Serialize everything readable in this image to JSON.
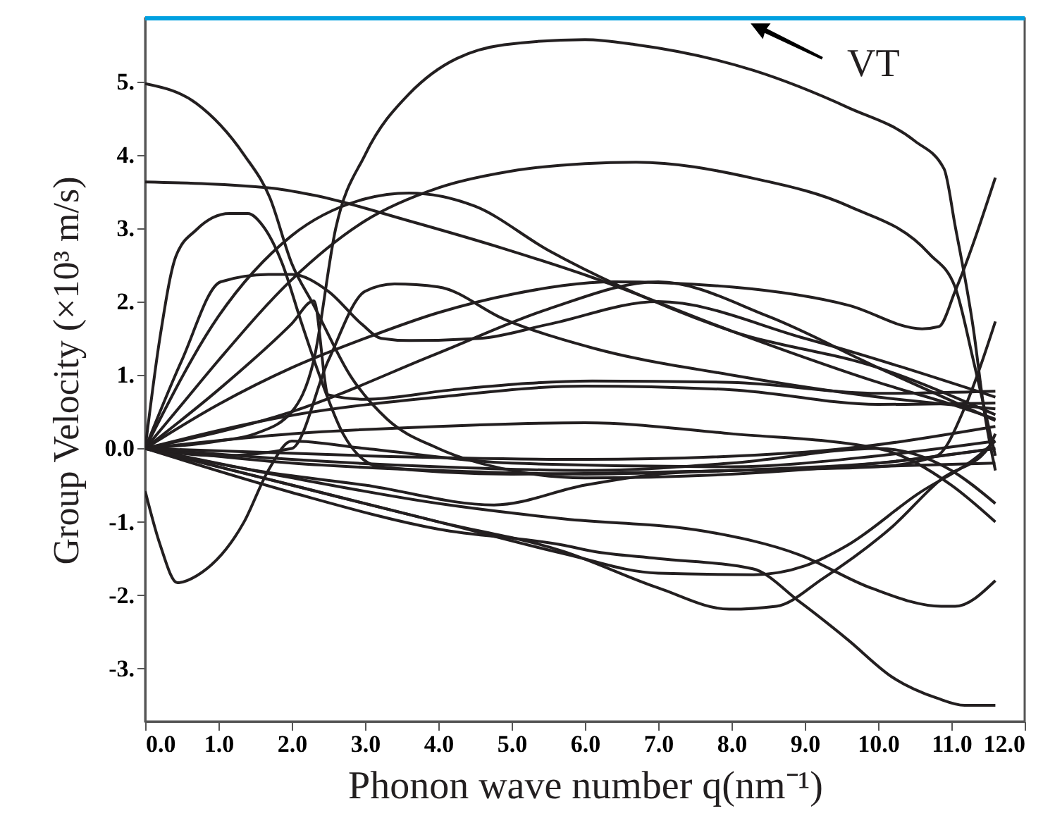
{
  "chart_data": {
    "type": "line",
    "xlabel": "Phonon wave number q(nm⁻¹)",
    "ylabel": "Group Velocity (×10³ m/s)",
    "xlim": [
      0,
      12
    ],
    "ylim": [
      -3.72,
      5.86
    ],
    "xticks": [
      {
        "value": 0,
        "label": "0.0"
      },
      {
        "value": 1,
        "label": "1.0"
      },
      {
        "value": 2,
        "label": "2.0"
      },
      {
        "value": 3,
        "label": "3.0"
      },
      {
        "value": 4,
        "label": "4.0"
      },
      {
        "value": 5,
        "label": "5.0"
      },
      {
        "value": 6,
        "label": "6.0"
      },
      {
        "value": 7,
        "label": "7.0"
      },
      {
        "value": 8,
        "label": "8.0"
      },
      {
        "value": 9,
        "label": "9.0"
      },
      {
        "value": 10,
        "label": "10.0"
      },
      {
        "value": 11,
        "label": "11.0"
      },
      {
        "value": 12,
        "label": "12.0"
      }
    ],
    "yticks": [
      {
        "value": -3,
        "label": "-3."
      },
      {
        "value": -2,
        "label": "-2."
      },
      {
        "value": -1,
        "label": "-1."
      },
      {
        "value": 0,
        "label": "0.0"
      },
      {
        "value": 1,
        "label": "1."
      },
      {
        "value": 2,
        "label": "2."
      },
      {
        "value": 3,
        "label": "3."
      },
      {
        "value": 4,
        "label": "4."
      },
      {
        "value": 5,
        "label": "5."
      }
    ],
    "marker": "none",
    "line_style": "solid",
    "ref_lines": [
      {
        "axis": "y",
        "value": 5.86,
        "label": "VT",
        "color": "#00a0e0"
      }
    ],
    "series": [
      {
        "color": "#231f20",
        "x": [
          0,
          1,
          1.5,
          2,
          2.3,
          2.6,
          3,
          3.6,
          4.9,
          6,
          6.7,
          8.3,
          9.6,
          10.5,
          10.9,
          11.05,
          11.3,
          11.45,
          11.6
        ],
        "values": [
          0,
          0.1,
          0.2,
          0.5,
          1.2,
          3.0,
          4.0,
          4.83,
          5.5,
          5.57,
          5.5,
          5.15,
          4.64,
          4.19,
          3.81,
          3.04,
          1.63,
          0.5,
          -0.3
        ]
      },
      {
        "color": "#231f20",
        "x": [
          0,
          0.5,
          1,
          2,
          3,
          4,
          5,
          6,
          6.7,
          8.3,
          9.6,
          10.7,
          11.05,
          11.3,
          11.6
        ],
        "values": [
          0,
          0.6,
          1.2,
          2.3,
          3.1,
          3.55,
          3.78,
          3.88,
          3.9,
          3.68,
          3.3,
          2.65,
          2.2,
          1.2,
          -0.1
        ]
      },
      {
        "color": "#231f20",
        "x": [
          0,
          0.7,
          1.35,
          1.7,
          2,
          2.3,
          2.8,
          3.3,
          4,
          5,
          6,
          8,
          10,
          11.6
        ],
        "values": [
          4.97,
          4.7,
          4.0,
          3.42,
          2.52,
          1.95,
          0.99,
          0.4,
          0,
          -0.3,
          -0.4,
          -0.35,
          -0.2,
          0
        ]
      },
      {
        "color": "#231f20",
        "x": [
          0,
          1.7,
          2.3,
          3.6,
          4.9,
          6.1,
          8,
          10,
          11,
          11.6
        ],
        "values": [
          3.63,
          3.55,
          3.45,
          3.1,
          2.72,
          2.33,
          1.6,
          0.9,
          0.6,
          0.4
        ]
      },
      {
        "color": "#231f20",
        "x": [
          0,
          1,
          2,
          3,
          3.6,
          4.5,
          5.5,
          6.5,
          8,
          10,
          11.6
        ],
        "values": [
          0,
          1.8,
          2.9,
          3.4,
          3.48,
          3.3,
          2.7,
          2.2,
          1.6,
          1.1,
          0.46
        ]
      },
      {
        "color": "#231f20",
        "x": [
          0,
          0.2,
          0.42,
          0.7,
          1.15,
          1.4,
          1.6,
          1.87,
          2.12,
          2.38,
          2.7,
          3.2,
          5,
          8,
          11.6
        ],
        "values": [
          0,
          1.5,
          2.62,
          2.98,
          3.2,
          3.2,
          3.04,
          2.52,
          1.75,
          0.99,
          0.2,
          -0.25,
          -0.35,
          -0.3,
          -0.2
        ]
      },
      {
        "color": "#231f20",
        "x": [
          0,
          0.5,
          1.03,
          1.68,
          2,
          2.5,
          2.96,
          3.22,
          3.6,
          4.57,
          5.5,
          7,
          9,
          11.6
        ],
        "values": [
          0,
          1.2,
          2.27,
          2.37,
          2.37,
          2.14,
          1.69,
          1.5,
          1.47,
          1.5,
          1.69,
          2.0,
          1.5,
          0.7
        ]
      },
      {
        "color": "#231f20",
        "x": [
          0,
          1,
          2,
          2.3,
          2.5,
          3,
          4.2,
          6.1,
          8,
          10,
          11.6
        ],
        "values": [
          0,
          0.8,
          1.7,
          2.01,
          0.73,
          0.67,
          0.8,
          0.92,
          0.9,
          0.75,
          0.78
        ]
      },
      {
        "color": "#231f20",
        "x": [
          0,
          1,
          2,
          2.5,
          3,
          3.4,
          4,
          4.9,
          6.1,
          8,
          10,
          11.6
        ],
        "values": [
          0,
          -0.1,
          0,
          1.2,
          2.14,
          2.24,
          2.2,
          1.76,
          1.37,
          1.0,
          0.7,
          0.54
        ]
      },
      {
        "color": "#231f20",
        "x": [
          0,
          1,
          2,
          3,
          4,
          5,
          6.4,
          8,
          9.6,
          10.6,
          10.83,
          11.05,
          11.6
        ],
        "values": [
          0,
          0.6,
          1.1,
          1.5,
          1.85,
          2.1,
          2.27,
          2.2,
          1.95,
          1.63,
          1.66,
          2.14,
          3.69
        ]
      },
      {
        "color": "#231f20",
        "x": [
          0,
          2,
          4,
          5.5,
          7,
          8.5,
          10,
          11.6
        ],
        "values": [
          0,
          0.5,
          1.3,
          1.9,
          2.27,
          1.8,
          1.1,
          0.38
        ]
      },
      {
        "color": "#231f20",
        "x": [
          0,
          2,
          4,
          6,
          8,
          10,
          11.6
        ],
        "values": [
          0,
          0.45,
          0.7,
          0.85,
          0.8,
          0.6,
          0.62
        ]
      },
      {
        "color": "#231f20",
        "x": [
          0,
          0.2,
          0.44,
          0.71,
          1.35,
          1.68,
          2,
          3,
          5,
          8,
          10,
          11.6
        ],
        "values": [
          -0.58,
          -1.3,
          -1.83,
          -1.73,
          -1.0,
          -0.3,
          0.1,
          0.0,
          -0.2,
          -0.25,
          -0.1,
          0.1
        ]
      },
      {
        "color": "#231f20",
        "x": [
          0,
          2,
          4,
          5.72,
          6.1,
          7,
          8.29,
          8.93,
          9.58,
          10.2,
          10.8,
          11.18,
          11.6
        ],
        "values": [
          0,
          -0.6,
          -1.1,
          -1.32,
          -1.4,
          -1.5,
          -1.64,
          -2.09,
          -2.6,
          -3.12,
          -3.4,
          -3.5,
          -3.5
        ]
      },
      {
        "color": "#231f20",
        "x": [
          0,
          2,
          4,
          5.7,
          7,
          7.97,
          8.61,
          9.25,
          10.2,
          10.86,
          11.5,
          11.6
        ],
        "values": [
          0,
          -0.5,
          -1.0,
          -1.4,
          -1.9,
          -2.19,
          -2.15,
          -1.77,
          -1.06,
          -0.42,
          0,
          0.2
        ]
      },
      {
        "color": "#231f20",
        "x": [
          0,
          2,
          4,
          5.72,
          7.65,
          8.93,
          9.9,
          10.86,
          11.05,
          11.6
        ],
        "values": [
          0,
          -0.4,
          -0.75,
          -0.96,
          -1.13,
          -1.45,
          -1.9,
          -2.15,
          -2.15,
          -1.8
        ]
      },
      {
        "color": "#231f20",
        "x": [
          0,
          2,
          4,
          5.7,
          7,
          8.3,
          9,
          9.58,
          10.54,
          11.37,
          11.6
        ],
        "values": [
          0,
          -0.5,
          -1.0,
          -1.43,
          -1.7,
          -1.72,
          -1.6,
          -1.32,
          -0.62,
          -0.1,
          0.1
        ]
      },
      {
        "color": "#231f20",
        "x": [
          0,
          1.5,
          3,
          4.76,
          6,
          7,
          8,
          10,
          11.6
        ],
        "values": [
          0,
          -0.3,
          -0.5,
          -0.77,
          -0.5,
          -0.35,
          -0.3,
          -0.2,
          0
        ]
      },
      {
        "color": "#231f20",
        "x": [
          0,
          2,
          4,
          6,
          8,
          10,
          10.8,
          11.2,
          11.6
        ],
        "values": [
          0,
          -0.2,
          -0.3,
          -0.35,
          -0.3,
          -0.25,
          -0.1,
          0.6,
          1.73
        ]
      },
      {
        "color": "#231f20",
        "x": [
          0,
          2,
          4,
          6,
          8,
          10,
          11,
          11.6
        ],
        "values": [
          0,
          -0.15,
          -0.25,
          -0.3,
          -0.2,
          0,
          -0.3,
          -0.75
        ]
      },
      {
        "color": "#231f20",
        "x": [
          0,
          2,
          4,
          6,
          8,
          10,
          11,
          11.6
        ],
        "values": [
          0,
          0.2,
          0.3,
          0.35,
          0.2,
          0,
          -0.5,
          -1.0
        ]
      },
      {
        "color": "#231f20",
        "x": [
          0,
          3,
          6,
          9,
          11.6
        ],
        "values": [
          0,
          -0.1,
          -0.15,
          -0.05,
          0.3
        ]
      }
    ]
  }
}
